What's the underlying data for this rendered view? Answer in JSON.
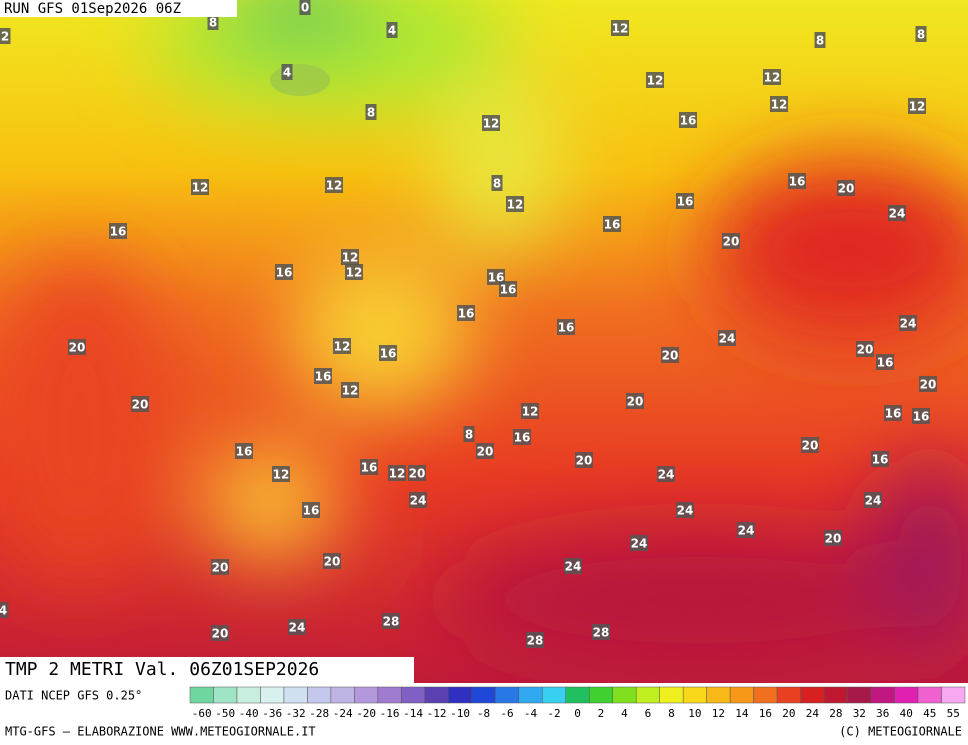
{
  "header": {
    "run": "RUN GFS 01Sep2026 06Z"
  },
  "map": {
    "labels": [
      "12",
      "8",
      "8",
      "8",
      "4",
      "0",
      "4",
      "12",
      "12",
      "12",
      "12",
      "8",
      "12",
      "16",
      "12",
      "12",
      "8",
      "12",
      "16",
      "20",
      "16",
      "24",
      "16",
      "16",
      "20",
      "12",
      "16",
      "12",
      "16",
      "16",
      "16",
      "16",
      "24",
      "20",
      "12",
      "16",
      "24",
      "20",
      "20",
      "16",
      "16",
      "12",
      "20",
      "20",
      "20",
      "12",
      "16",
      "16",
      "8",
      "16",
      "16",
      "20",
      "20",
      "16",
      "12",
      "20",
      "16",
      "12",
      "20",
      "24",
      "24",
      "24",
      "16",
      "24",
      "24",
      "24",
      "20",
      "20",
      "24",
      "20",
      "28",
      "24",
      "20",
      "28",
      "28",
      "2",
      "4"
    ]
  },
  "footer": {
    "title": "TMP 2 METRI Val. 06Z01SEP2026",
    "source": "DATI NCEP GFS 0.25°",
    "credit": "MTG-GFS — ELABORAZIONE WWW.METEOGIORNALE.IT",
    "copyright": "(C) METEOGIORNALE"
  },
  "legend": {
    "ticks": [
      -60,
      -50,
      -40,
      -36,
      -32,
      -28,
      -24,
      -20,
      -16,
      -14,
      -12,
      -10,
      -8,
      -6,
      -4,
      -2,
      0,
      2,
      4,
      6,
      8,
      10,
      12,
      14,
      16,
      20,
      24,
      28,
      32,
      36,
      40,
      45,
      55
    ],
    "colors": [
      "#6fd6a0",
      "#9fe4c4",
      "#c8eee0",
      "#d8f0ee",
      "#d0e0f0",
      "#c4c8ec",
      "#c0b4e4",
      "#b498dc",
      "#a07cd0",
      "#8060c4",
      "#5a40b0",
      "#3030c0",
      "#2048d8",
      "#2878e8",
      "#30a8f0",
      "#38d0f0",
      "#20c060",
      "#40d030",
      "#80e020",
      "#c0f020",
      "#f0f020",
      "#f8d818",
      "#f8b818",
      "#f89818",
      "#f07020",
      "#e84020",
      "#d82020",
      "#c01830",
      "#a81848",
      "#c01880",
      "#e020b0",
      "#f060d0",
      "#f8a8f0"
    ]
  }
}
